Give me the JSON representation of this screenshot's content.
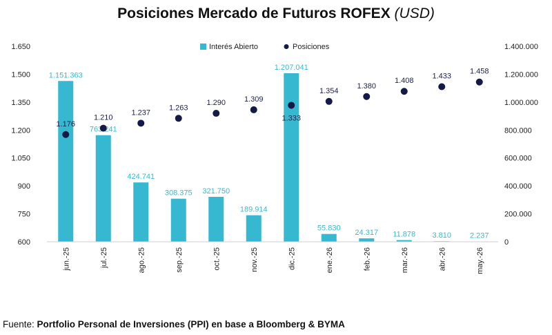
{
  "title": {
    "main": "Posiciones Mercado de Futuros ROFEX",
    "unit": "(USD)"
  },
  "source": {
    "label": "Fuente:",
    "text": "Portfolio Personal de Inversiones (PPI) en base a Bloomberg & BYMA"
  },
  "colors": {
    "bar": "#36b8d0",
    "dot": "#141a45",
    "bar_label": "#39b8d0",
    "dot_label": "#1c1f4a"
  },
  "chart_data": {
    "type": "bar",
    "categories": [
      "jun.-25",
      "jul.-25",
      "ago.-25",
      "sep.-25",
      "oct.-25",
      "nov.-25",
      "dic.-25",
      "ene.-26",
      "feb.-26",
      "mar.-26",
      "abr.-26",
      "may.-26"
    ],
    "series": [
      {
        "name": "Interés Abierto",
        "type": "bar",
        "axis": "right",
        "values": [
          1151363,
          763241,
          424741,
          308375,
          321750,
          189914,
          1207041,
          55830,
          24317,
          11878,
          3810,
          2237
        ],
        "labels": [
          "1.151.363",
          "763.241",
          "424.741",
          "308.375",
          "321.750",
          "189.914",
          "1.207.041",
          "55.830",
          "24.317",
          "11.878",
          "3.810",
          "2.237"
        ]
      },
      {
        "name": "Posiciones",
        "type": "scatter",
        "axis": "left",
        "values": [
          1176,
          1210,
          1237,
          1263,
          1290,
          1309,
          1333,
          1354,
          1380,
          1408,
          1433,
          1458
        ],
        "labels": [
          "1.176",
          "1.210",
          "1.237",
          "1.263",
          "1.290",
          "1.309",
          "1.333",
          "1.354",
          "1.380",
          "1.408",
          "1.433",
          "1.458"
        ]
      }
    ],
    "y_left": {
      "range": [
        600,
        1650
      ],
      "ticks": [
        600,
        750,
        900,
        1050,
        1200,
        1350,
        1500,
        1650
      ],
      "tick_labels": [
        "600",
        "750",
        "900",
        "1.050",
        "1.200",
        "1.350",
        "1.500",
        "1.650"
      ]
    },
    "y_right": {
      "range": [
        0,
        1400000
      ],
      "ticks": [
        0,
        200000,
        400000,
        600000,
        800000,
        1000000,
        1200000,
        1400000
      ],
      "tick_labels": [
        "0",
        "200.000",
        "400.000",
        "600.000",
        "800.000",
        "1.000.000",
        "1.200.000",
        "1.400.000"
      ]
    },
    "legend_position": "top-center",
    "grid": false
  }
}
